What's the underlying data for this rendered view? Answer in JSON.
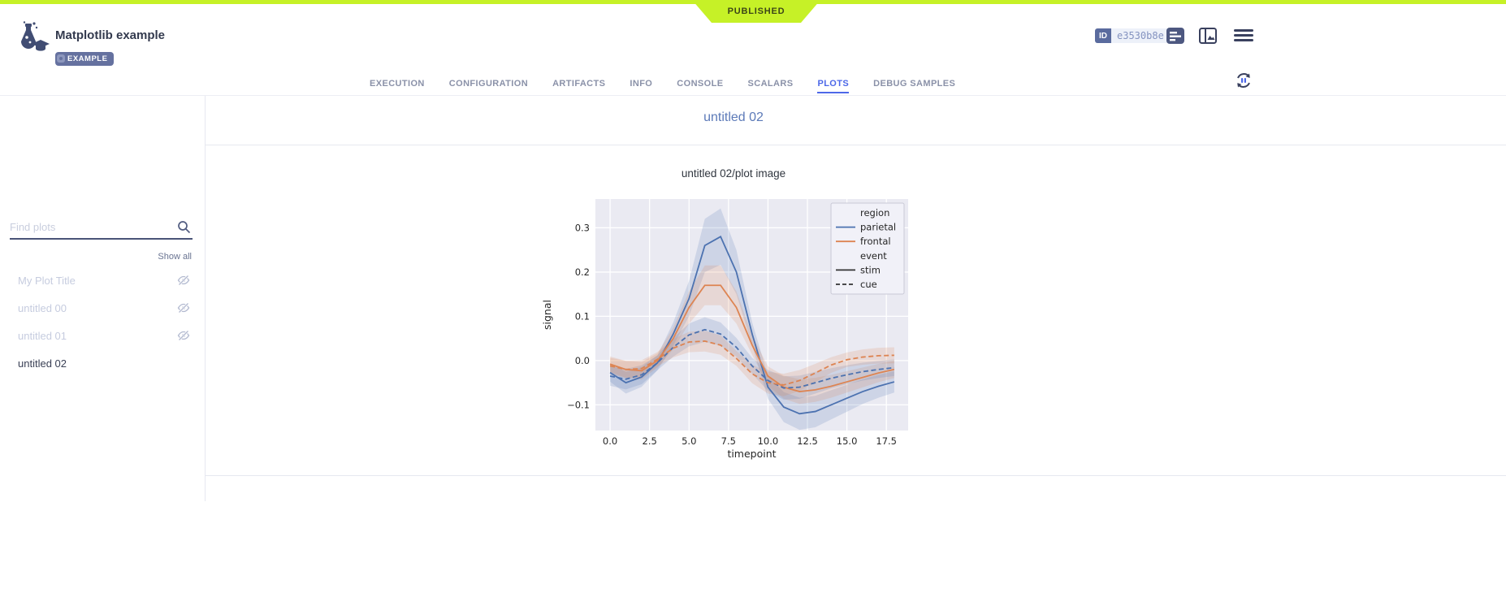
{
  "colors": {
    "accent_lime": "#c6f127",
    "ribbon_text": "#3c4618",
    "active_tab": "#4d68e8",
    "slate": "#5a6b9e",
    "parietal": "#4c72b0",
    "frontal": "#dd8452",
    "legend_line": "#333333",
    "axes_bg": "#eaeaf2"
  },
  "header": {
    "status_ribbon": "PUBLISHED",
    "title": "Matplotlib example",
    "badge": "EXAMPLE",
    "id_label": "ID",
    "id_value": "e3530b8e"
  },
  "tabs": [
    {
      "label": "EXECUTION",
      "active": false
    },
    {
      "label": "CONFIGURATION",
      "active": false
    },
    {
      "label": "ARTIFACTS",
      "active": false
    },
    {
      "label": "INFO",
      "active": false
    },
    {
      "label": "CONSOLE",
      "active": false
    },
    {
      "label": "SCALARS",
      "active": false
    },
    {
      "label": "PLOTS",
      "active": true
    },
    {
      "label": "DEBUG SAMPLES",
      "active": false
    }
  ],
  "sidebar": {
    "search_placeholder": "Find plots",
    "show_all": "Show all",
    "items": [
      {
        "label": "My Plot Title",
        "hidden": true,
        "selected": false
      },
      {
        "label": "untitled 00",
        "hidden": true,
        "selected": false
      },
      {
        "label": "untitled 01",
        "hidden": true,
        "selected": false
      },
      {
        "label": "untitled 02",
        "hidden": false,
        "selected": true
      }
    ]
  },
  "main": {
    "group_title": "untitled 02",
    "plot_title": "untitled 02/plot image"
  },
  "chart_data": {
    "type": "line",
    "title": "",
    "xlabel": "timepoint",
    "ylabel": "signal",
    "xlim": [
      -0.93,
      18.88
    ],
    "ylim": [
      -0.158,
      0.365
    ],
    "grid": true,
    "xticks": [
      "0.0",
      "2.5",
      "5.0",
      "7.5",
      "10.0",
      "12.5",
      "15.0",
      "17.5"
    ],
    "xtick_values": [
      0,
      2.5,
      5,
      7.5,
      10,
      12.5,
      15,
      17.5
    ],
    "yticks": [
      "0.3",
      "0.2",
      "0.1",
      "0.0",
      "−0.1"
    ],
    "ytick_values": [
      0.3,
      0.2,
      0.1,
      0.0,
      -0.1
    ],
    "x": [
      0,
      1,
      2,
      3,
      4,
      5,
      6,
      7,
      8,
      9,
      10,
      11,
      12,
      13,
      14,
      15,
      16,
      17,
      18
    ],
    "series": [
      {
        "name": "parietal / stim",
        "region": "parietal",
        "event": "stim",
        "color": "#4c72b0",
        "dash": false,
        "values": [
          -0.027,
          -0.05,
          -0.037,
          -0.005,
          0.06,
          0.14,
          0.26,
          0.28,
          0.2,
          0.06,
          -0.06,
          -0.105,
          -0.12,
          -0.115,
          -0.1,
          -0.085,
          -0.07,
          -0.058,
          -0.048
        ]
      },
      {
        "name": "frontal / stim",
        "region": "frontal",
        "event": "stim",
        "color": "#dd8452",
        "dash": false,
        "values": [
          -0.008,
          -0.02,
          -0.023,
          0.0,
          0.05,
          0.12,
          0.17,
          0.17,
          0.12,
          0.035,
          -0.035,
          -0.06,
          -0.07,
          -0.066,
          -0.058,
          -0.048,
          -0.038,
          -0.028,
          -0.02
        ]
      },
      {
        "name": "parietal / cue",
        "region": "parietal",
        "event": "cue",
        "color": "#4c72b0",
        "dash": true,
        "values": [
          -0.035,
          -0.042,
          -0.032,
          -0.005,
          0.03,
          0.058,
          0.07,
          0.06,
          0.03,
          -0.012,
          -0.045,
          -0.062,
          -0.06,
          -0.05,
          -0.04,
          -0.032,
          -0.025,
          -0.02,
          -0.016
        ]
      },
      {
        "name": "frontal / cue",
        "region": "frontal",
        "event": "cue",
        "color": "#dd8452",
        "dash": true,
        "values": [
          -0.012,
          -0.02,
          -0.018,
          0.003,
          0.028,
          0.042,
          0.044,
          0.035,
          0.005,
          -0.03,
          -0.05,
          -0.055,
          -0.045,
          -0.028,
          -0.01,
          0.002,
          0.008,
          0.011,
          0.012
        ]
      }
    ],
    "legend": {
      "position": "upper right",
      "rows": [
        {
          "type": "header",
          "label": "region"
        },
        {
          "type": "line",
          "label": "parietal",
          "color": "#4c72b0",
          "dash": false
        },
        {
          "type": "line",
          "label": "frontal",
          "color": "#dd8452",
          "dash": false
        },
        {
          "type": "header",
          "label": "event"
        },
        {
          "type": "line",
          "label": "stim",
          "color": "#333333",
          "dash": false
        },
        {
          "type": "line",
          "label": "cue",
          "color": "#333333",
          "dash": true
        }
      ]
    }
  },
  "icons": {
    "app_logo": "experiment-flask-icon",
    "example_badge": "gear-icon",
    "header_right": [
      "details-icon",
      "side-panel-icon",
      "menu-icon"
    ],
    "tab_row": "auto-refresh-pause-icon",
    "sidebar": [
      "search-icon",
      "eye-off-icon"
    ]
  }
}
